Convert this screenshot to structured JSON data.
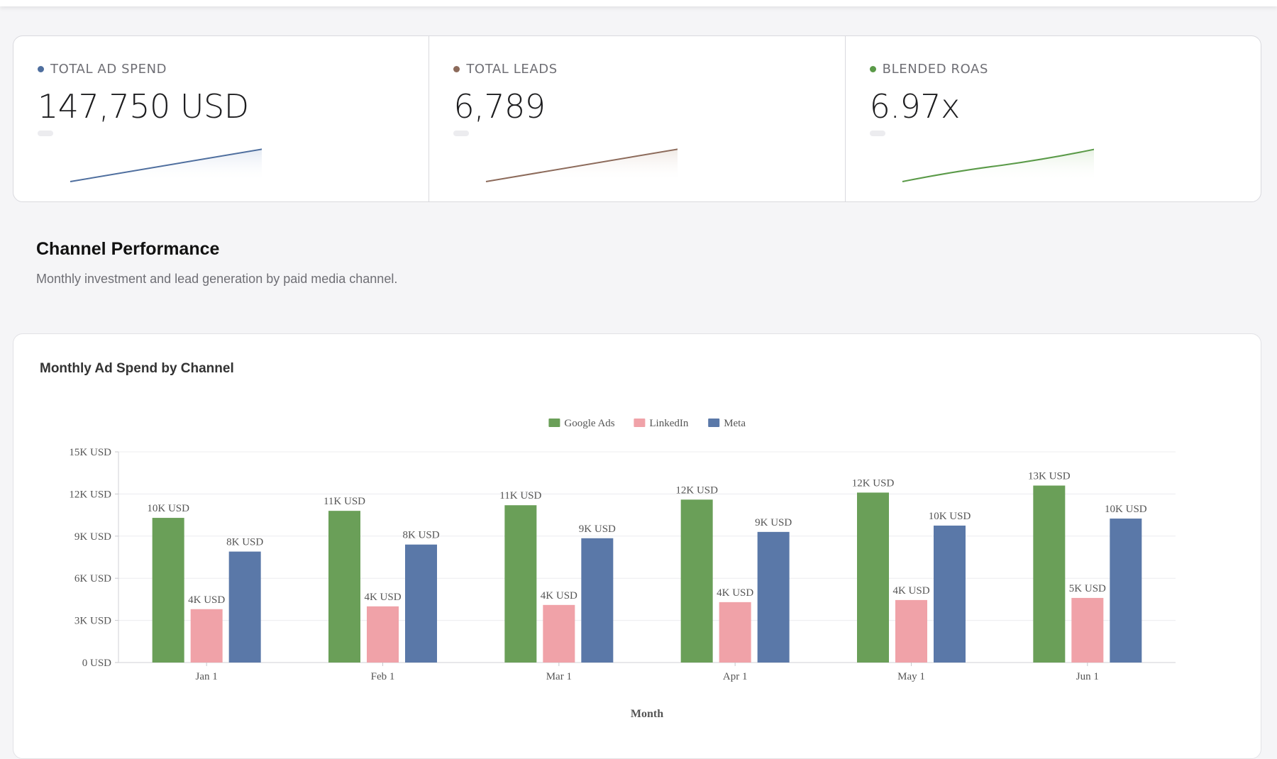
{
  "kpis": [
    {
      "label": "TOTAL AD SPEND",
      "value": "147,750 USD",
      "color": "#4e6e9e",
      "fill": "#dfe6f1"
    },
    {
      "label": "TOTAL LEADS",
      "value": "6,789",
      "color": "#8c6a5a",
      "fill": "#ede5e0"
    },
    {
      "label": "BLENDED ROAS",
      "value": "6.97x",
      "color": "#5a9a48",
      "fill": "#e2efdd"
    }
  ],
  "section": {
    "title": "Channel Performance",
    "subtitle": "Monthly investment and lead generation by paid media channel."
  },
  "chart_data": {
    "type": "bar",
    "title": "Monthly Ad Spend by Channel",
    "xlabel": "Month",
    "ylabel": "",
    "categories": [
      "Jan 1",
      "Feb 1",
      "Mar 1",
      "Apr 1",
      "May 1",
      "Jun 1"
    ],
    "series": [
      {
        "name": "Google Ads",
        "color": "#6a9f58",
        "values": [
          10300,
          10800,
          11200,
          11600,
          12100,
          12600
        ],
        "labels": [
          "10K USD",
          "11K USD",
          "11K USD",
          "12K USD",
          "12K USD",
          "13K USD"
        ]
      },
      {
        "name": "LinkedIn",
        "color": "#f0a2a8",
        "values": [
          3800,
          4000,
          4100,
          4300,
          4450,
          4600
        ],
        "labels": [
          "4K USD",
          "4K USD",
          "4K USD",
          "4K USD",
          "4K USD",
          "5K USD"
        ]
      },
      {
        "name": "Meta",
        "color": "#5a78a8",
        "values": [
          7900,
          8400,
          8850,
          9300,
          9750,
          10250
        ],
        "labels": [
          "8K USD",
          "8K USD",
          "9K USD",
          "9K USD",
          "10K USD",
          "10K USD"
        ]
      }
    ],
    "ylim": [
      0,
      15000
    ],
    "yticks": [
      0,
      3000,
      6000,
      9000,
      12000,
      15000
    ],
    "ytick_labels": [
      "0 USD",
      "3K USD",
      "6K USD",
      "9K USD",
      "12K USD",
      "15K USD"
    ],
    "legend": "top-center",
    "grid": true
  }
}
